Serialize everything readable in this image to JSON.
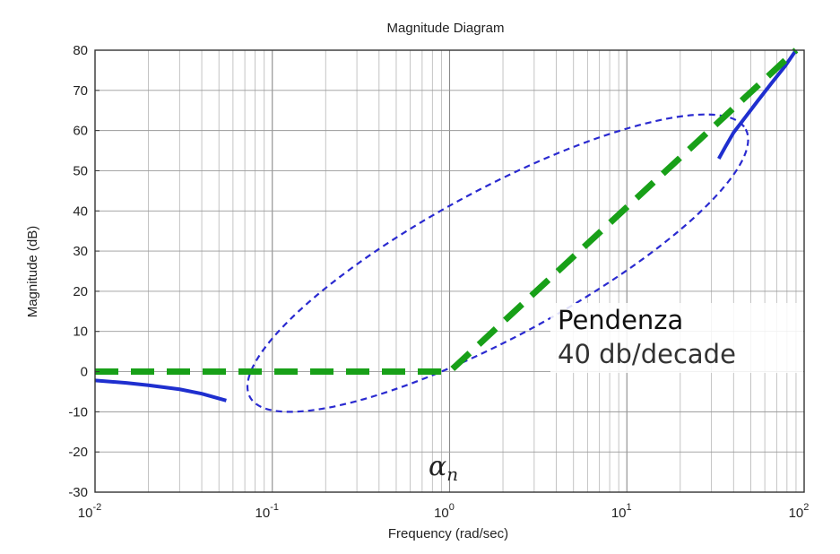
{
  "chart_data": {
    "type": "line",
    "title": "Magnitude Diagram",
    "xlabel": "Frequency (rad/sec)",
    "ylabel": "Magnitude (dB)",
    "xscale": "log",
    "xlim": [
      0.01,
      100
    ],
    "ylim": [
      -30,
      80
    ],
    "grid": true,
    "x_ticks": [
      {
        "base": "10",
        "exp": "-2"
      },
      {
        "base": "10",
        "exp": "-1"
      },
      {
        "base": "10",
        "exp": "0"
      },
      {
        "base": "10",
        "exp": "1"
      },
      {
        "base": "10",
        "exp": "2"
      }
    ],
    "y_ticks": [
      "80",
      "70",
      "60",
      "50",
      "40",
      "30",
      "20",
      "10",
      "0",
      "-10",
      "-20",
      "-30"
    ],
    "series": [
      {
        "style": "solid",
        "color": "#1f2fcf",
        "x": [
          0.01,
          0.015,
          0.02,
          0.03,
          0.04,
          0.055
        ],
        "y": [
          -2.2,
          -2.8,
          -3.4,
          -4.4,
          -5.5,
          -7.2
        ]
      },
      {
        "style": "solid",
        "color": "#1f2fcf",
        "x": [
          33,
          36,
          40,
          46,
          55,
          66,
          78,
          90
        ],
        "y": [
          53,
          56,
          59.5,
          63,
          67.5,
          72,
          76,
          80
        ]
      },
      {
        "style": "dashed",
        "color": "#18a018",
        "x": [
          0.01,
          1,
          90
        ],
        "y": [
          0,
          0,
          80
        ]
      }
    ],
    "ellipse": {
      "style": "dashed",
      "color": "#2a2ad0",
      "x": [
        0.07,
        50
      ],
      "y": [
        -7,
        61
      ]
    },
    "annotations": {
      "slope_title": "Pendenza",
      "slope_value": "40 db/decade",
      "alpha_base": "α",
      "alpha_sub": "n"
    }
  }
}
